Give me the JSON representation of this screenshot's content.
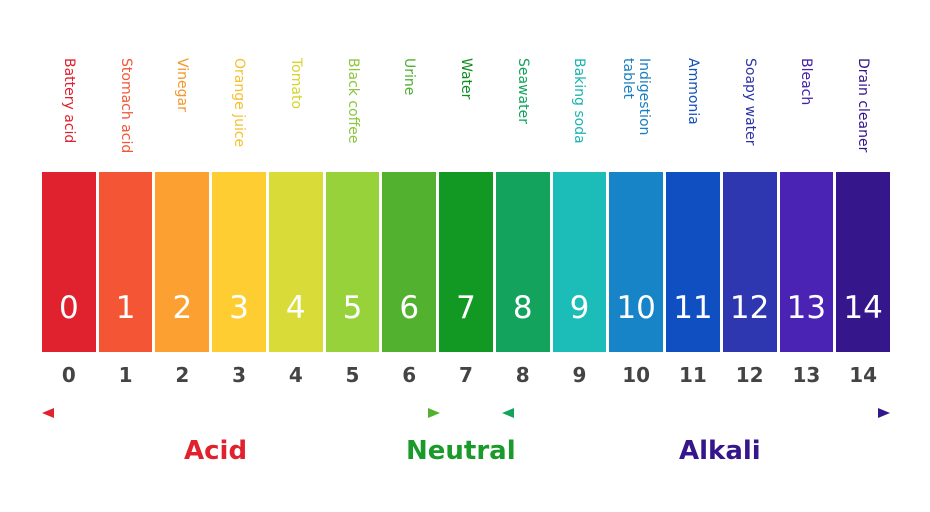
{
  "items": [
    {
      "value": "0",
      "label": [
        "Battery acid"
      ],
      "color": "#e0222f",
      "text_color": "#e0222f"
    },
    {
      "value": "1",
      "label": [
        "Stomach acid"
      ],
      "color": "#f45535",
      "text_color": "#f45535"
    },
    {
      "value": "2",
      "label": [
        "Vinegar"
      ],
      "color": "#fba031",
      "text_color": "#f5962a"
    },
    {
      "value": "3",
      "label": [
        "Orange juice"
      ],
      "color": "#fdcd32",
      "text_color": "#f5c02e"
    },
    {
      "value": "4",
      "label": [
        "Tomato"
      ],
      "color": "#d9dc38",
      "text_color": "#d4d42e"
    },
    {
      "value": "5",
      "label": [
        "Black coffee"
      ],
      "color": "#97d23a",
      "text_color": "#8cc63f"
    },
    {
      "value": "6",
      "label": [
        "Urine"
      ],
      "color": "#52b12f",
      "text_color": "#4cb12e"
    },
    {
      "value": "7",
      "label": [
        "Water"
      ],
      "color": "#129923",
      "text_color": "#0f8f20"
    },
    {
      "value": "8",
      "label": [
        "Seawater"
      ],
      "color": "#13a35d",
      "text_color": "#13a35d"
    },
    {
      "value": "9",
      "label": [
        "Baking soda"
      ],
      "color": "#1cbdb8",
      "text_color": "#1ab5b0"
    },
    {
      "value": "10",
      "label": [
        "Indigestion",
        "tablet"
      ],
      "color": "#1684c7",
      "text_color": "#1a7fc0"
    },
    {
      "value": "11",
      "label": [
        "Ammonia"
      ],
      "color": "#0f4fc2",
      "text_color": "#1450b8"
    },
    {
      "value": "12",
      "label": [
        "Soapy water"
      ],
      "color": "#2e36b0",
      "text_color": "#2d35a8"
    },
    {
      "value": "13",
      "label": [
        "Bleach"
      ],
      "color": "#4a23b4",
      "text_color": "#4422aa"
    },
    {
      "value": "14",
      "label": [
        "Drain cleaner"
      ],
      "color": "#35168b",
      "text_color": "#35168b"
    }
  ],
  "zones": {
    "acid": {
      "label": "Acid",
      "color": "#e0222f",
      "arrow_from": "#e0222f",
      "arrow_to": "#52b12f"
    },
    "neutral": {
      "label": "Neutral",
      "color": "#1a9a2a"
    },
    "alkali": {
      "label": "Alkali",
      "color": "#35168b",
      "arrow_from": "#13a35d",
      "arrow_to": "#35168b"
    }
  }
}
